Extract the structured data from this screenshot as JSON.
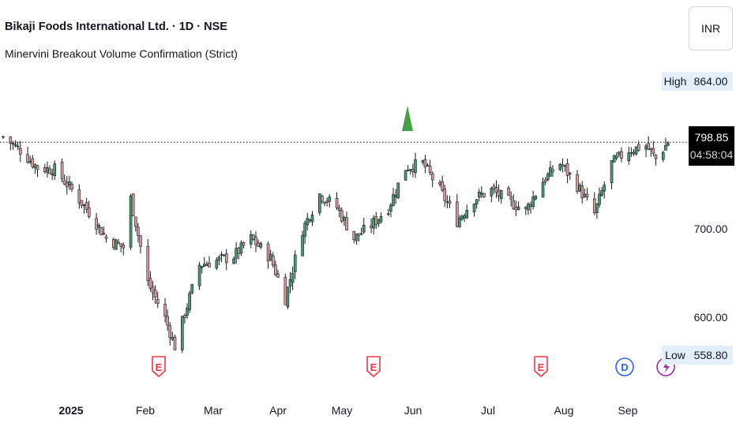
{
  "header": {
    "title": "Bikaji Foods International Ltd. · 1D · NSE",
    "indicator_name": "Minervini Breakout Volume Confirmation (Strict)"
  },
  "currency": "INR",
  "price_scale": {
    "high_label": "High",
    "high_value": "864.00",
    "low_label": "Low",
    "low_value": "558.80",
    "last_price": "798.85",
    "countdown": "04:58:04",
    "ticks": [
      "700.00",
      "600.00"
    ]
  },
  "time_axis": {
    "labels": [
      "2025",
      "Feb",
      "Mar",
      "Apr",
      "May",
      "Jun",
      "Jul",
      "Aug",
      "Sep"
    ]
  },
  "events": [
    {
      "type": "earnings",
      "letter": "E",
      "color": "#f23645"
    },
    {
      "type": "earnings",
      "letter": "E",
      "color": "#f23645"
    },
    {
      "type": "earnings",
      "letter": "E",
      "color": "#f23645"
    },
    {
      "type": "dividend",
      "letter": "D",
      "color": "#2962ff"
    },
    {
      "type": "split",
      "letter": "",
      "color": "#9c27b0"
    }
  ],
  "colors": {
    "up": "#4a9a6b",
    "down": "#d89a9a",
    "wick": "#131722",
    "signal": "#43a047",
    "last_line": "#131722"
  },
  "chart_data": {
    "type": "candlestick",
    "timeframe": "1D",
    "ylim": [
      540,
      880
    ],
    "high": 864.0,
    "low": 558.8,
    "last": 798.85,
    "signals": [
      {
        "marker": "up-triangle",
        "near": "late May 2025"
      }
    ],
    "series_close_approx": [
      {
        "x": "2024-12-13",
        "close": 805
      },
      {
        "x": "2024-12-20",
        "close": 790
      },
      {
        "x": "2024-12-27",
        "close": 770
      },
      {
        "x": "2025-01-03",
        "close": 768
      },
      {
        "x": "2025-01-10",
        "close": 745
      },
      {
        "x": "2025-01-17",
        "close": 720
      },
      {
        "x": "2025-01-24",
        "close": 690
      },
      {
        "x": "2025-01-31",
        "close": 680
      },
      {
        "x": "2025-02-03",
        "close": 735
      },
      {
        "x": "2025-02-10",
        "close": 640
      },
      {
        "x": "2025-02-17",
        "close": 600
      },
      {
        "x": "2025-02-21",
        "close": 568
      },
      {
        "x": "2025-03-03",
        "close": 660
      },
      {
        "x": "2025-03-10",
        "close": 665
      },
      {
        "x": "2025-03-17",
        "close": 670
      },
      {
        "x": "2025-03-24",
        "close": 690
      },
      {
        "x": "2025-04-01",
        "close": 668
      },
      {
        "x": "2025-04-07",
        "close": 622
      },
      {
        "x": "2025-04-14",
        "close": 700
      },
      {
        "x": "2025-04-21",
        "close": 740
      },
      {
        "x": "2025-04-28",
        "close": 725
      },
      {
        "x": "2025-05-05",
        "close": 690
      },
      {
        "x": "2025-05-12",
        "close": 705
      },
      {
        "x": "2025-05-19",
        "close": 725
      },
      {
        "x": "2025-05-26",
        "close": 770
      },
      {
        "x": "2025-06-02",
        "close": 775
      },
      {
        "x": "2025-06-09",
        "close": 745
      },
      {
        "x": "2025-06-16",
        "close": 710
      },
      {
        "x": "2025-06-23",
        "close": 735
      },
      {
        "x": "2025-06-30",
        "close": 745
      },
      {
        "x": "2025-07-07",
        "close": 732
      },
      {
        "x": "2025-07-14",
        "close": 722
      },
      {
        "x": "2025-07-21",
        "close": 755
      },
      {
        "x": "2025-07-28",
        "close": 775
      },
      {
        "x": "2025-08-04",
        "close": 750
      },
      {
        "x": "2025-08-11",
        "close": 718
      },
      {
        "x": "2025-08-18",
        "close": 775
      },
      {
        "x": "2025-08-25",
        "close": 790
      },
      {
        "x": "2025-09-01",
        "close": 795
      },
      {
        "x": "2025-09-05",
        "close": 780
      },
      {
        "x": "2025-09-10",
        "close": 798.85
      }
    ]
  }
}
